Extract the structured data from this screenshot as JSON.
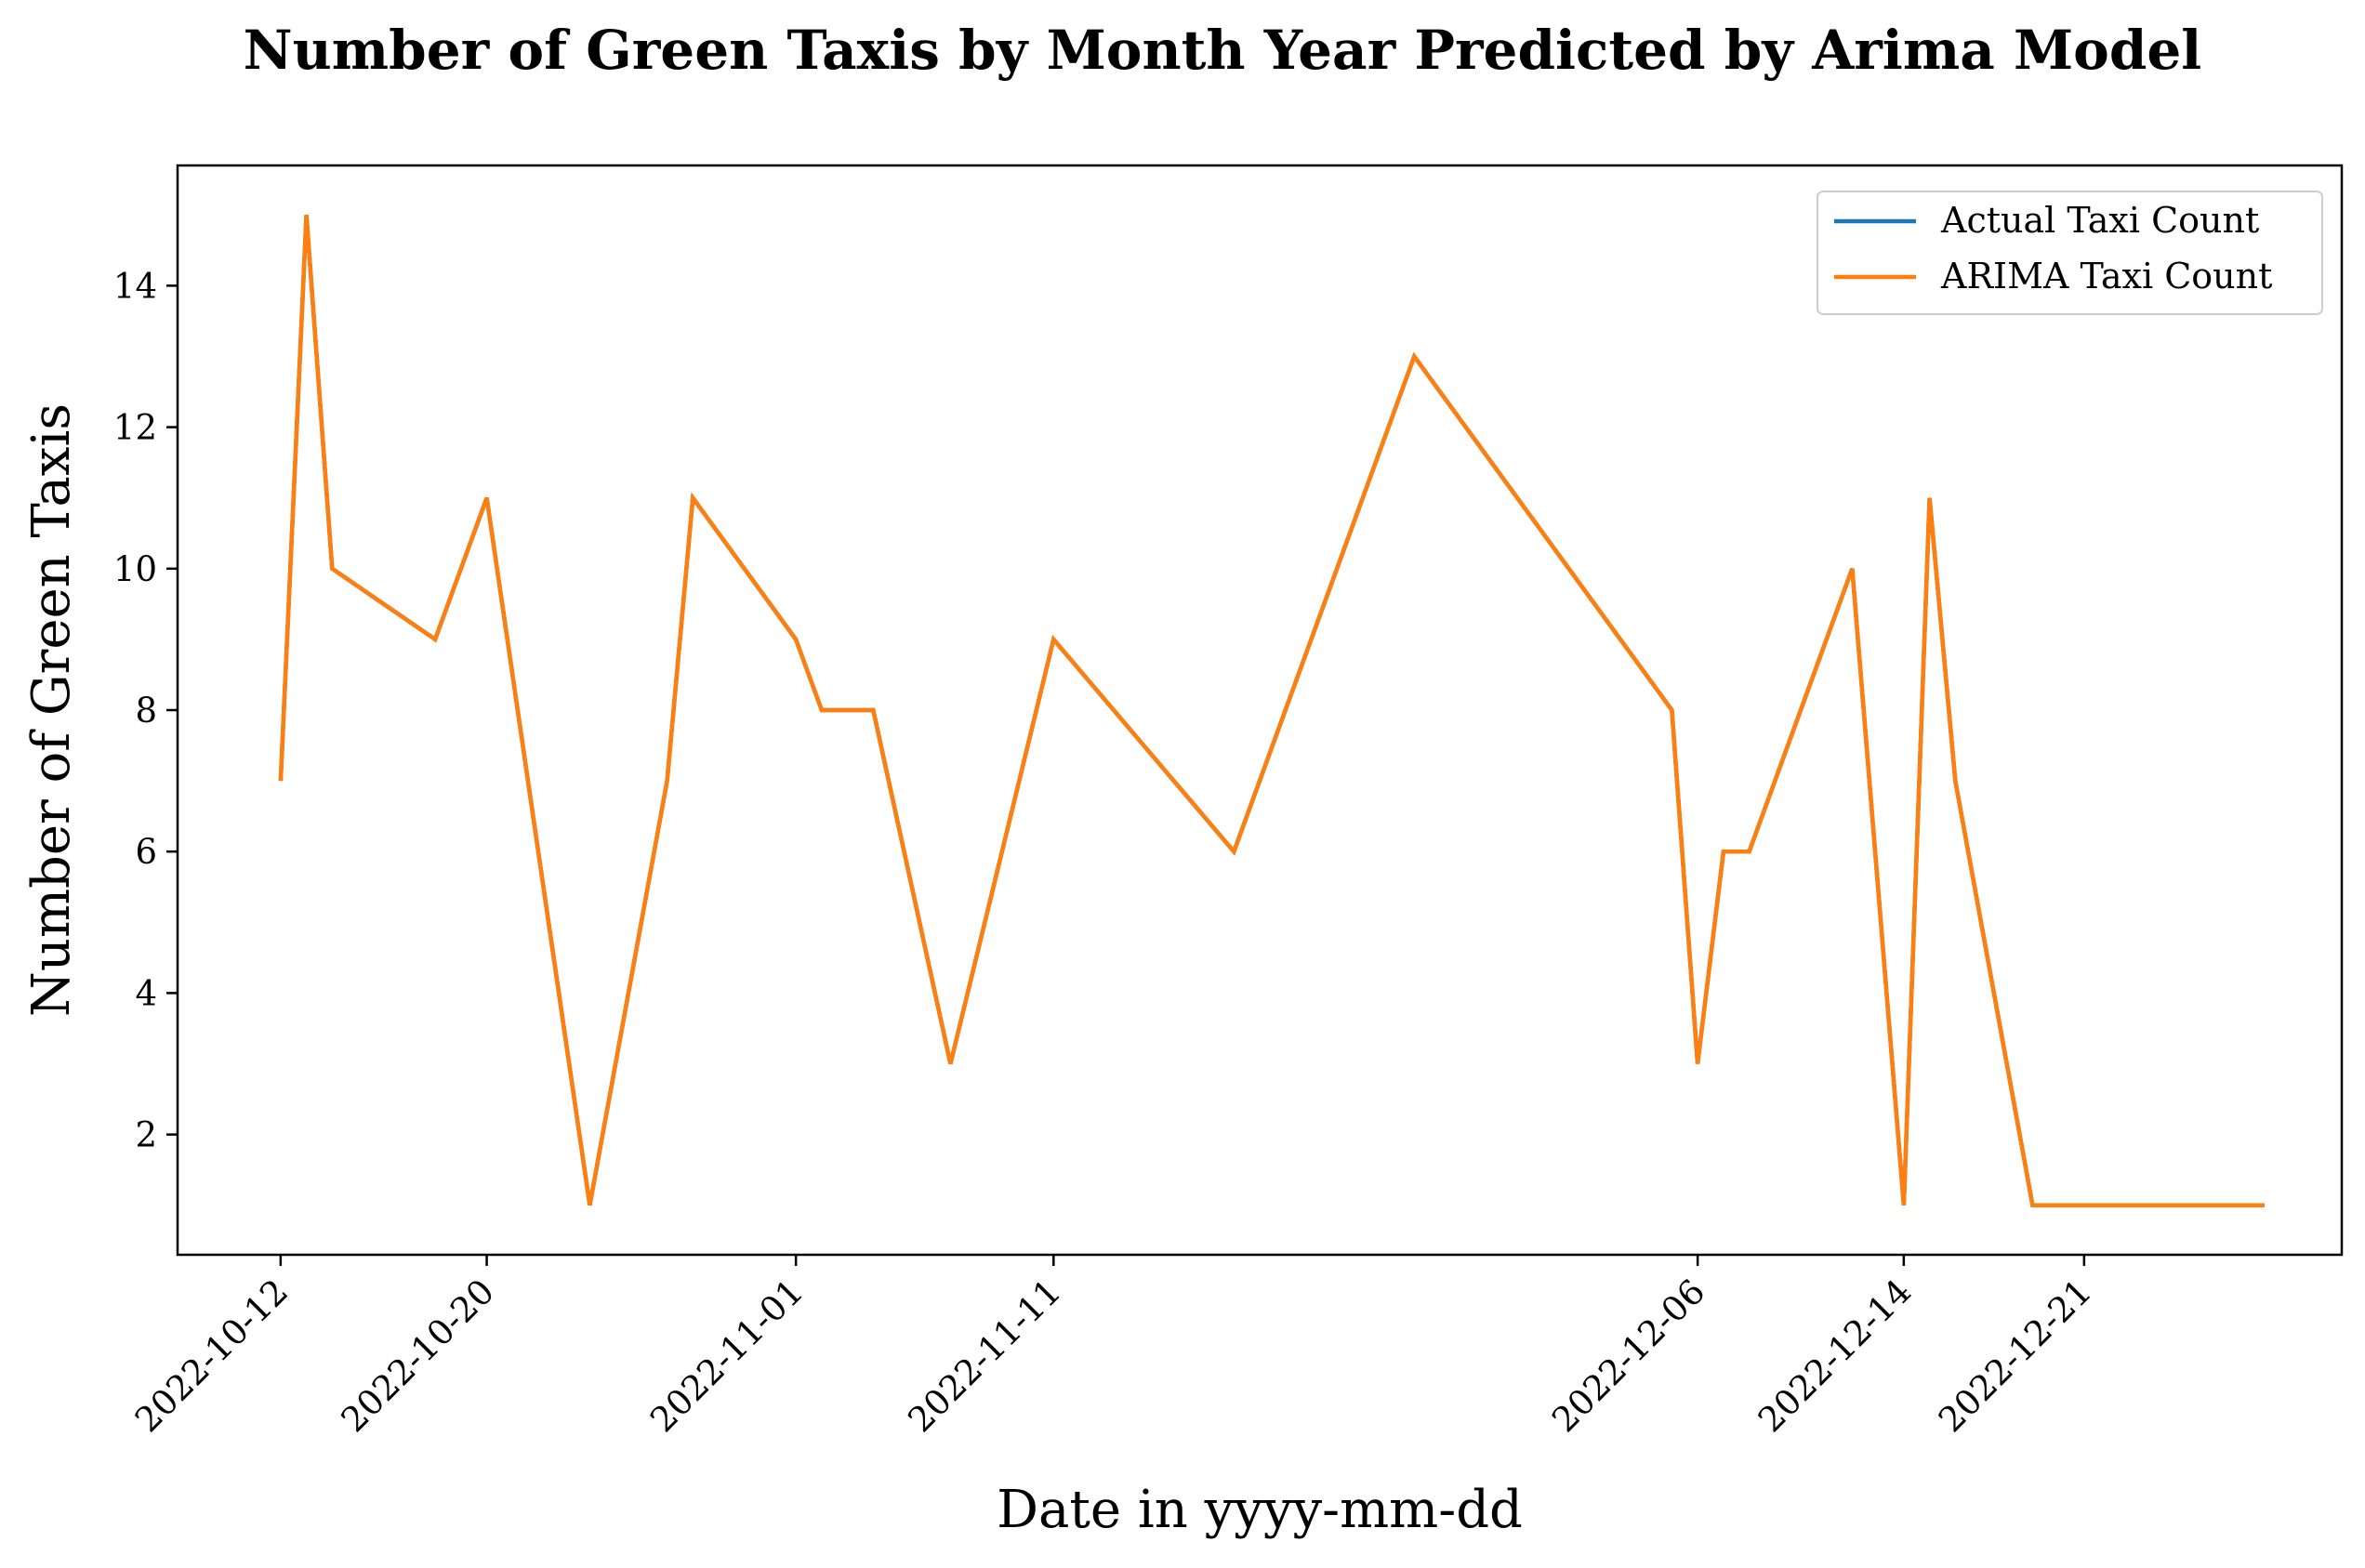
{
  "chart_data": {
    "type": "line",
    "title": "Number of Green Taxis by Month Year Predicted by Arima Model",
    "xlabel": "Date in yyyy-mm-dd",
    "ylabel": "Number of Green Taxis",
    "x_type": "date",
    "xlim": [
      "2022-10-08",
      "2022-12-31"
    ],
    "ylim": [
      0.3,
      15.7
    ],
    "x_ticks": [
      "2022-10-12",
      "2022-10-20",
      "2022-11-01",
      "2022-11-11",
      "2022-12-06",
      "2022-12-14",
      "2022-12-21"
    ],
    "y_ticks": [
      2,
      4,
      6,
      8,
      10,
      12,
      14
    ],
    "grid": false,
    "legend": {
      "position": "top-right"
    },
    "x": [
      "2022-10-12",
      "2022-10-13",
      "2022-10-14",
      "2022-10-18",
      "2022-10-20",
      "2022-10-24",
      "2022-10-27",
      "2022-10-28",
      "2022-11-01",
      "2022-11-02",
      "2022-11-04",
      "2022-11-07",
      "2022-11-11",
      "2022-11-18",
      "2022-11-25",
      "2022-12-05",
      "2022-12-06",
      "2022-12-07",
      "2022-12-08",
      "2022-12-12",
      "2022-12-14",
      "2022-12-15",
      "2022-12-16",
      "2022-12-19",
      "2022-12-28"
    ],
    "series": [
      {
        "name": "Actual Taxi Count",
        "color": "#1f77b4",
        "values": [
          7,
          15,
          10,
          9,
          11,
          1,
          7,
          11,
          9,
          8,
          8,
          3,
          9,
          6,
          13,
          8,
          3,
          6,
          6,
          10,
          1,
          11,
          7,
          1,
          1
        ]
      },
      {
        "name": "ARIMA Taxi Count",
        "color": "#ff7f0e",
        "values": [
          7,
          15,
          10,
          9,
          11,
          1,
          7,
          11,
          9,
          8,
          8,
          3,
          9,
          6,
          13,
          8,
          3,
          6,
          6,
          10,
          1,
          11,
          7,
          1,
          1
        ]
      }
    ]
  }
}
